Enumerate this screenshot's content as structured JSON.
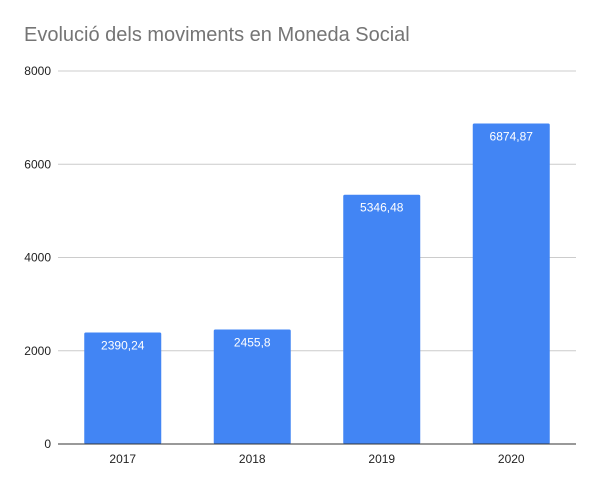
{
  "chart_data": {
    "type": "bar",
    "title": "Evolució dels moviments en Moneda Social",
    "xlabel": "",
    "ylabel": "",
    "categories": [
      "2017",
      "2018",
      "2019",
      "2020"
    ],
    "values": [
      2390.24,
      2455.8,
      5346.48,
      6874.87
    ],
    "data_labels": [
      "2390,24",
      "2455,8",
      "5346,48",
      "6874,87"
    ],
    "ylim": [
      0,
      8000
    ],
    "yticks": [
      0,
      2000,
      4000,
      6000,
      8000
    ],
    "ytick_labels": [
      "0",
      "2000",
      "4000",
      "6000",
      "8000"
    ],
    "grid": true,
    "legend": "none",
    "colors": {
      "bar": "#4285f4",
      "grid": "#cccccc",
      "axis": "#333333",
      "title": "#757575",
      "label": "#222222"
    }
  }
}
